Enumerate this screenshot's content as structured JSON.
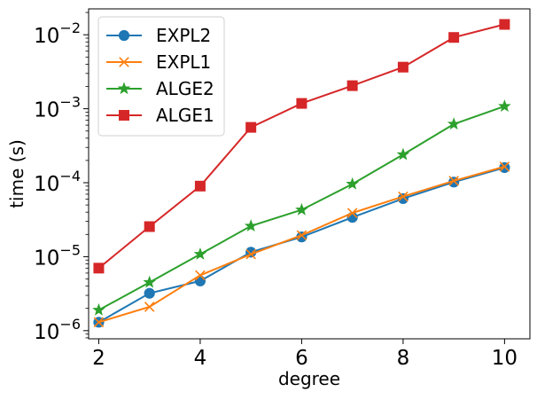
{
  "chart_data": {
    "type": "line",
    "title": "",
    "xlabel": "degree",
    "ylabel": "time (s)",
    "yscale": "log",
    "xlim": [
      1.8,
      10.5
    ],
    "ylim_log10": [
      -6.11,
      -1.65
    ],
    "x_ticks": [
      2,
      4,
      6,
      8,
      10
    ],
    "x_tick_labels": [
      "2",
      "4",
      "6",
      "8",
      "10"
    ],
    "y_ticks_exp": [
      -6,
      -5,
      -4,
      -3,
      -2
    ],
    "y_tick_base": "10",
    "y_tick_exponents": [
      "−6",
      "−5",
      "−4",
      "−3",
      "−2"
    ],
    "legend_position": "top-left",
    "x": [
      2,
      3,
      4,
      5,
      6,
      7,
      8,
      9,
      10
    ],
    "series": [
      {
        "name": "EXPL2",
        "color": "#1f77b4",
        "marker": "circle",
        "values": [
          1.3e-06,
          3.2e-06,
          4.7e-06,
          1.15e-05,
          1.85e-05,
          3.4e-05,
          6.1e-05,
          0.000102,
          0.00016
        ]
      },
      {
        "name": "EXPL1",
        "color": "#ff7f0e",
        "marker": "x",
        "values": [
          1.3e-06,
          2.1e-06,
          5.6e-06,
          1.08e-05,
          1.95e-05,
          3.9e-05,
          6.5e-05,
          0.000106,
          0.000165
        ]
      },
      {
        "name": "ALGE2",
        "color": "#2ca02c",
        "marker": "star",
        "values": [
          1.9e-06,
          4.5e-06,
          1.08e-05,
          2.6e-05,
          4.3e-05,
          9.6e-05,
          0.00024,
          0.00062,
          0.00108
        ]
      },
      {
        "name": "ALGE1",
        "color": "#d62728",
        "marker": "square",
        "values": [
          7e-06,
          2.55e-05,
          9e-05,
          0.00056,
          0.00118,
          0.00205,
          0.00365,
          0.0092,
          0.0138
        ]
      }
    ]
  }
}
